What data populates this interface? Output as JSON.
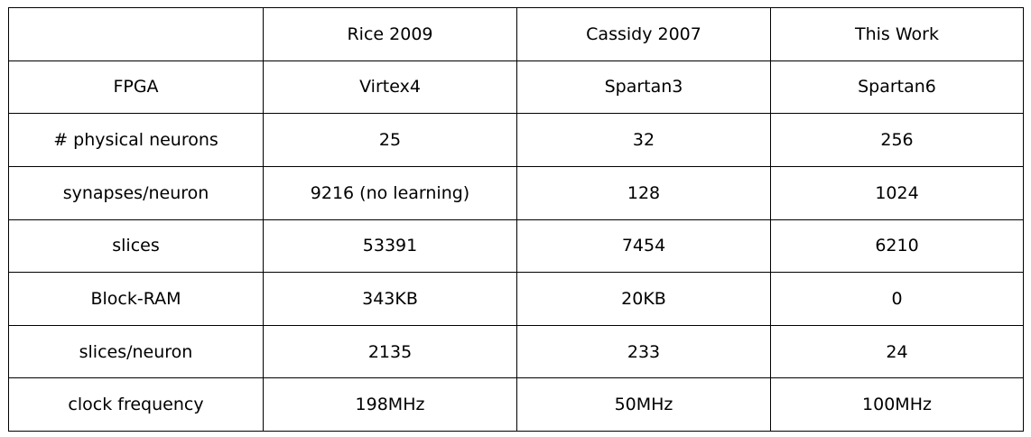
{
  "table": {
    "header": [
      "",
      "Rice 2009",
      "Cassidy 2007",
      "This Work"
    ],
    "rows": [
      {
        "label": "FPGA",
        "values": [
          "Virtex4",
          "Spartan3",
          "Spartan6"
        ]
      },
      {
        "label": "# physical neurons",
        "values": [
          "25",
          "32",
          "256"
        ]
      },
      {
        "label": "synapses/neuron",
        "values": [
          "9216 (no learning)",
          "128",
          "1024"
        ]
      },
      {
        "label": "slices",
        "values": [
          "53391",
          "7454",
          "6210"
        ]
      },
      {
        "label": "Block-RAM",
        "values": [
          "343KB",
          "20KB",
          "0"
        ]
      },
      {
        "label": "slices/neuron",
        "values": [
          "2135",
          "233",
          "24"
        ]
      },
      {
        "label": "clock frequency",
        "values": [
          "198MHz",
          "50MHz",
          "100MHz"
        ]
      }
    ]
  }
}
